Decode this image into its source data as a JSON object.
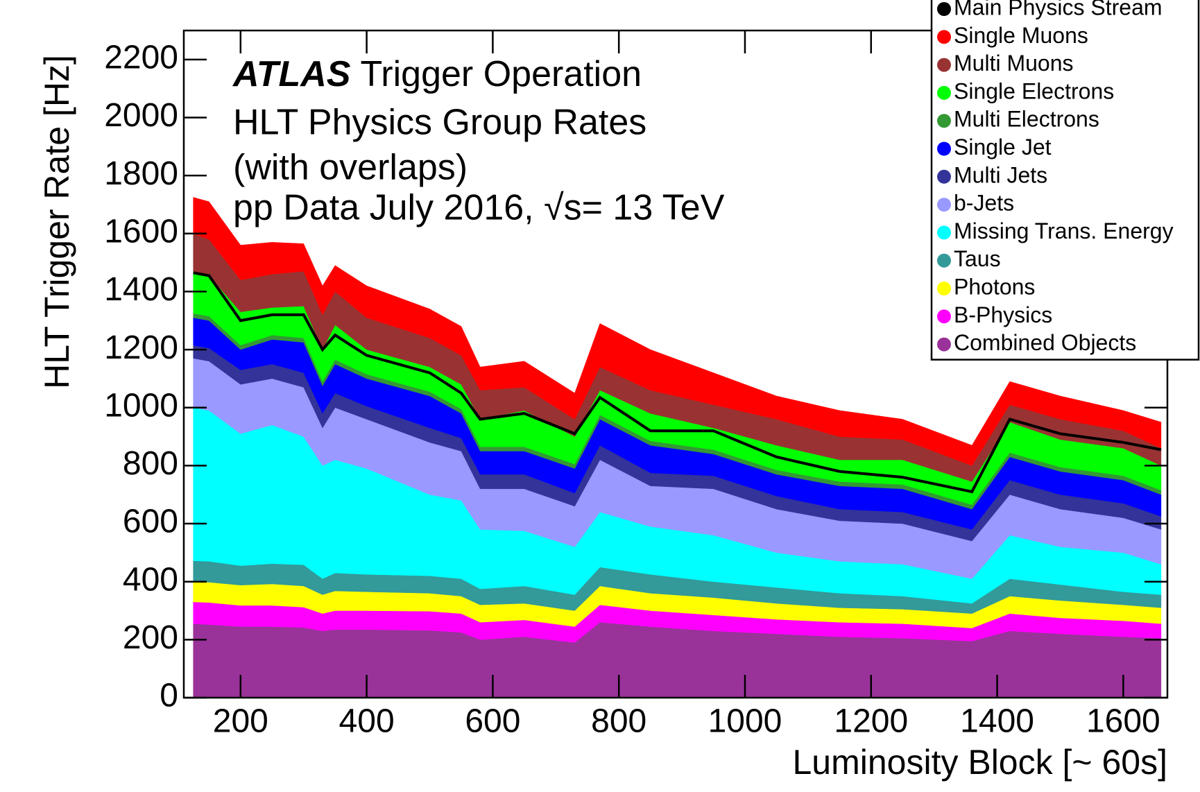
{
  "chart_data": {
    "type": "stacked_area",
    "annotations": [
      "ATLAS",
      "Trigger Operation",
      "HLT Physics Group Rates",
      "(with overlaps)",
      "pp Data July 2016, √s= 13 TeV"
    ],
    "y_label": "HLT Trigger Rate [Hz]",
    "x_label": "Luminosity Block [~ 60s]",
    "xlim": [
      110,
      1670
    ],
    "ylim": [
      0,
      2300
    ],
    "xticks": [
      200,
      400,
      600,
      800,
      1000,
      1200,
      1400,
      1600
    ],
    "yticks": [
      0,
      200,
      400,
      600,
      800,
      1000,
      1200,
      1400,
      1600,
      1800,
      2000,
      2200
    ],
    "x": [
      125,
      150,
      200,
      250,
      300,
      330,
      350,
      400,
      500,
      550,
      580,
      650,
      730,
      770,
      850,
      950,
      1050,
      1150,
      1250,
      1360,
      1420,
      1500,
      1600,
      1660
    ],
    "line_series": [
      {
        "name": "Main Physics Stream",
        "color": "#000000",
        "values": [
          1465,
          1455,
          1300,
          1320,
          1320,
          1200,
          1250,
          1180,
          1120,
          1050,
          960,
          980,
          910,
          1035,
          920,
          920,
          830,
          780,
          760,
          710,
          960,
          910,
          880,
          855
        ]
      }
    ],
    "series": [
      {
        "name": "Single Muons",
        "color": "#ff0000",
        "values": [
          125,
          130,
          120,
          110,
          95,
          100,
          90,
          110,
          100,
          100,
          80,
          90,
          90,
          150,
          140,
          110,
          80,
          90,
          70,
          70,
          80,
          80,
          70,
          90
        ]
      },
      {
        "name": "Multi Muons",
        "color": "#993333",
        "values": [
          130,
          125,
          110,
          115,
          120,
          120,
          115,
          110,
          100,
          100,
          100,
          80,
          60,
          80,
          80,
          80,
          90,
          80,
          70,
          55,
          60,
          70,
          60,
          60
        ]
      },
      {
        "name": "Single Electrons",
        "color": "#00ff00",
        "values": [
          145,
          140,
          115,
          95,
          110,
          110,
          120,
          85,
          85,
          85,
          95,
          125,
          95,
          85,
          95,
          75,
          85,
          75,
          85,
          80,
          105,
          95,
          95,
          85
        ]
      },
      {
        "name": "Multi Electrons",
        "color": "#339933",
        "values": [
          15,
          15,
          15,
          15,
          15,
          15,
          15,
          15,
          15,
          15,
          15,
          15,
          15,
          15,
          15,
          15,
          15,
          15,
          15,
          15,
          15,
          15,
          15,
          15
        ]
      },
      {
        "name": "Single Jet",
        "color": "#0000ff",
        "values": [
          95,
          95,
          70,
          85,
          105,
          95,
          100,
          95,
          110,
          85,
          80,
          80,
          85,
          90,
          95,
          75,
          75,
          80,
          80,
          70,
          80,
          80,
          80,
          75
        ]
      },
      {
        "name": "Multi Jets",
        "color": "#333399",
        "values": [
          45,
          45,
          50,
          50,
          50,
          50,
          50,
          45,
          50,
          45,
          50,
          50,
          45,
          50,
          45,
          45,
          45,
          40,
          40,
          40,
          50,
          50,
          50,
          45
        ]
      },
      {
        "name": "b-Jets",
        "color": "#9999ff",
        "values": [
          170,
          170,
          170,
          160,
          170,
          130,
          180,
          170,
          180,
          170,
          140,
          145,
          140,
          180,
          140,
          160,
          150,
          140,
          140,
          130,
          140,
          130,
          120,
          120
        ]
      },
      {
        "name": "Missing Trans. Energy",
        "color": "#00ffff",
        "values": [
          528,
          520,
          455,
          478,
          442,
          390,
          390,
          365,
          280,
          270,
          205,
          190,
          165,
          190,
          165,
          160,
          120,
          110,
          110,
          85,
          150,
          130,
          135,
          105
        ]
      },
      {
        "name": "Taus",
        "color": "#339999",
        "values": [
          72,
          72,
          67,
          70,
          73,
          55,
          62,
          60,
          60,
          60,
          55,
          60,
          55,
          65,
          65,
          55,
          55,
          50,
          45,
          35,
          60,
          55,
          45,
          45
        ]
      },
      {
        "name": "Photons",
        "color": "#ffff00",
        "values": [
          70,
          70,
          70,
          74,
          73,
          65,
          68,
          65,
          62,
          60,
          60,
          57,
          55,
          65,
          60,
          60,
          55,
          50,
          50,
          50,
          60,
          60,
          55,
          55
        ]
      },
      {
        "name": "B-Physics",
        "color": "#ff00ff",
        "values": [
          75,
          76,
          73,
          73,
          70,
          60,
          65,
          65,
          66,
          65,
          60,
          58,
          55,
          60,
          55,
          55,
          50,
          50,
          50,
          45,
          60,
          55,
          55,
          50
        ]
      },
      {
        "name": "Combined Objects",
        "color": "#993399",
        "values": [
          255,
          252,
          245,
          245,
          242,
          230,
          235,
          235,
          232,
          225,
          200,
          210,
          190,
          260,
          245,
          230,
          220,
          210,
          205,
          195,
          230,
          220,
          210,
          205
        ]
      }
    ]
  }
}
